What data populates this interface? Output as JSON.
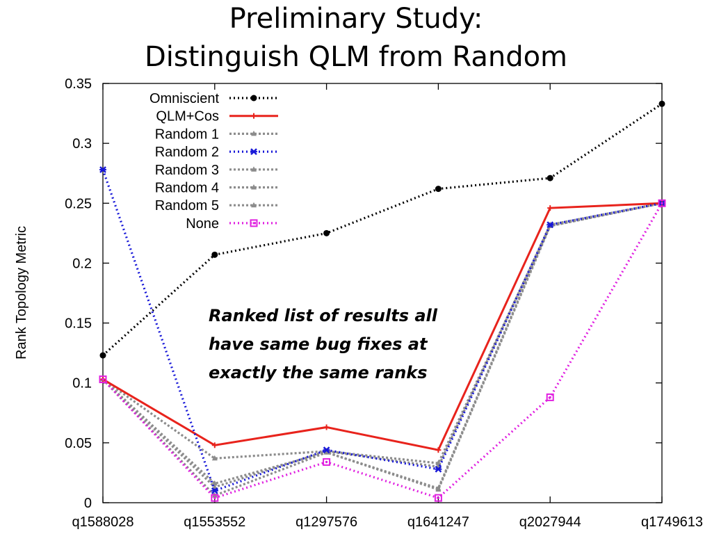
{
  "title_lines": [
    "Preliminary Study:",
    "Distinguish QLM from Random"
  ],
  "annotation_lines": [
    "Ranked list of results all",
    "have same bug fixes at",
    "exactly the  same ranks"
  ],
  "chart_data": {
    "type": "line",
    "ylabel": "Rank Topology Metric",
    "xlabel": "",
    "categories": [
      "q1588028",
      "q1553552",
      "q1297576",
      "q1641247",
      "q2027944",
      "q1749613"
    ],
    "ylim": [
      0,
      0.35
    ],
    "yticks": [
      "0",
      "0.05",
      "0.1",
      "0.15",
      "0.2",
      "0.25",
      "0.3",
      "0.35"
    ],
    "legend_placement": "top-left",
    "grid": false,
    "series": [
      {
        "name": "Omniscient",
        "values": [
          0.123,
          0.207,
          0.225,
          0.262,
          0.271,
          0.333
        ],
        "color": "#000000",
        "dash": "dotted",
        "marker": "dot"
      },
      {
        "name": "QLM+Cos",
        "values": [
          0.103,
          0.048,
          0.063,
          0.044,
          0.246,
          0.25
        ],
        "color": "#e8231c",
        "dash": "solid",
        "marker": "plus"
      },
      {
        "name": "Random 1",
        "values": [
          0.103,
          0.037,
          0.043,
          0.033,
          0.231,
          0.25
        ],
        "color": "#8c8c8c",
        "dash": "dotted",
        "marker": "triangle"
      },
      {
        "name": "Random 2",
        "values": [
          0.278,
          0.01,
          0.044,
          0.028,
          0.232,
          0.25
        ],
        "color": "#1818d8",
        "dash": "dotted",
        "marker": "star"
      },
      {
        "name": "Random 3",
        "values": [
          0.103,
          0.016,
          0.042,
          0.012,
          0.232,
          0.25
        ],
        "color": "#8c8c8c",
        "dash": "dotted",
        "marker": "triangle"
      },
      {
        "name": "Random 4",
        "values": [
          0.103,
          0.013,
          0.043,
          0.03,
          0.232,
          0.25
        ],
        "color": "#8c8c8c",
        "dash": "dotted",
        "marker": "triangle"
      },
      {
        "name": "Random 5",
        "values": [
          0.103,
          0.006,
          0.042,
          0.011,
          0.231,
          0.25
        ],
        "color": "#8c8c8c",
        "dash": "dotted",
        "marker": "triangle"
      },
      {
        "name": "None",
        "values": [
          0.103,
          0.004,
          0.034,
          0.004,
          0.088,
          0.25
        ],
        "color": "#e020e0",
        "dash": "dotted",
        "marker": "square"
      }
    ]
  }
}
